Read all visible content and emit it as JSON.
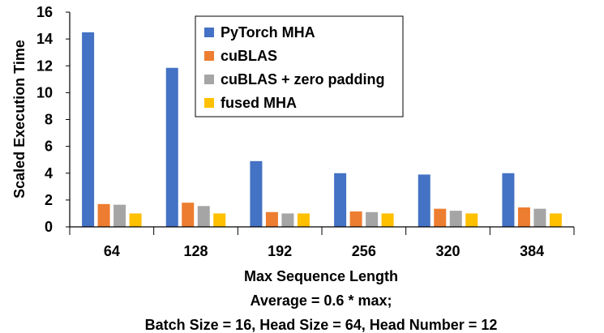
{
  "chart_data": {
    "type": "bar",
    "categories": [
      "64",
      "128",
      "192",
      "256",
      "320",
      "384"
    ],
    "series": [
      {
        "name": "PyTorch MHA",
        "color": "#4472C4",
        "values": [
          14.5,
          11.85,
          4.9,
          4.0,
          3.9,
          4.0
        ]
      },
      {
        "name": "cuBLAS",
        "color": "#ED7D31",
        "values": [
          1.7,
          1.8,
          1.1,
          1.15,
          1.35,
          1.45
        ]
      },
      {
        "name": "cuBLAS + zero padding",
        "color": "#A5A5A5",
        "values": [
          1.65,
          1.55,
          1.0,
          1.1,
          1.2,
          1.35
        ]
      },
      {
        "name": "fused MHA",
        "color": "#FFC000",
        "values": [
          1.0,
          1.0,
          1.0,
          1.0,
          1.0,
          1.0
        ]
      }
    ],
    "ylabel": "Scaled Execution Time",
    "xlabel": "Max Sequence Length",
    "xlabel_lines": [
      "Max Sequence Length",
      "Average = 0.6 * max;",
      "Batch Size = 16, Head Size = 64, Head Number = 12"
    ],
    "ylim": [
      0,
      16
    ],
    "yticks": [
      "0",
      "2",
      "4",
      "6",
      "8",
      "10",
      "12",
      "14",
      "16"
    ],
    "grid": false,
    "legend_position": "top-right"
  }
}
